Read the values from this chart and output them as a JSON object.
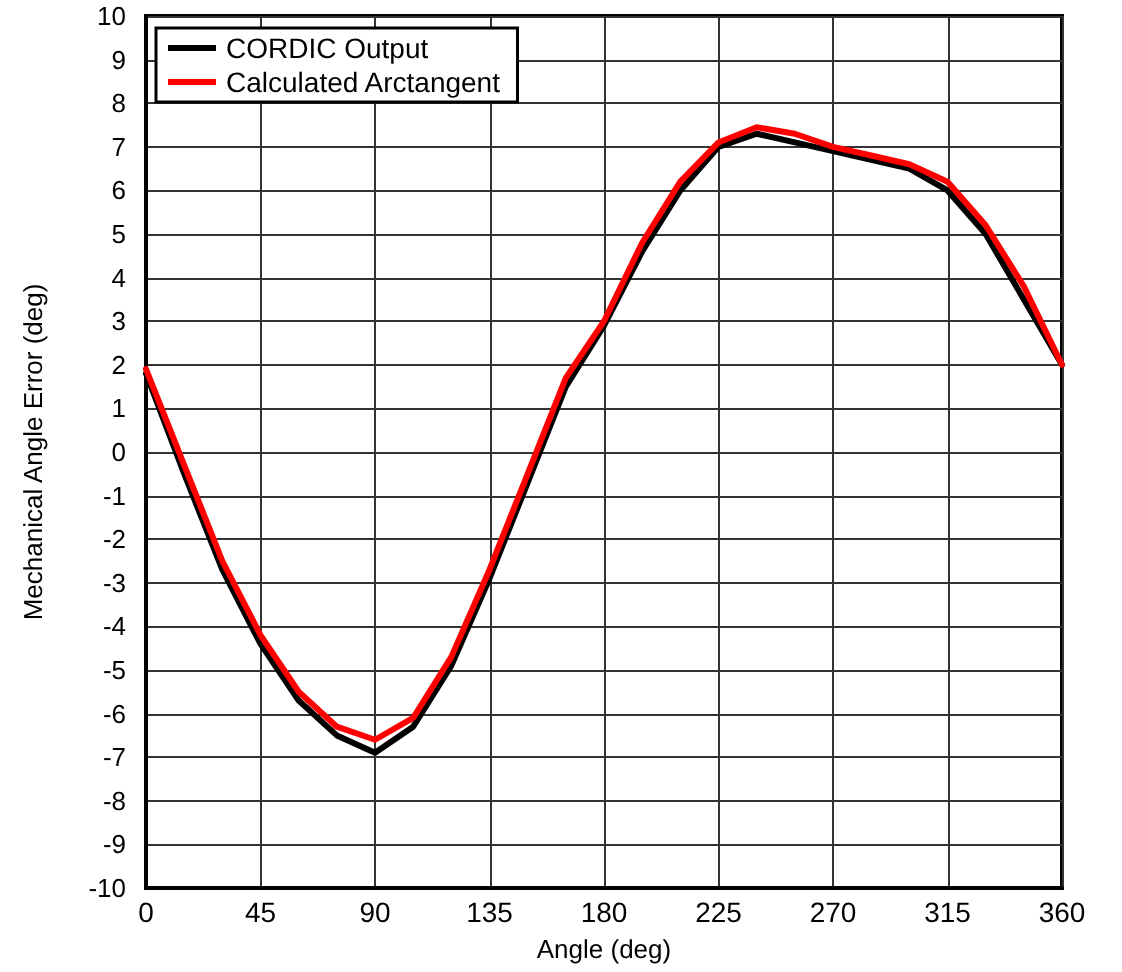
{
  "chart_data": {
    "type": "line",
    "xlabel": "Angle (deg)",
    "ylabel": "Mechanical Angle Error (deg)",
    "xlim": [
      0,
      360
    ],
    "xticks": [
      0,
      45,
      90,
      135,
      180,
      225,
      270,
      315,
      360
    ],
    "ylim": [
      -10,
      10
    ],
    "yticks": [
      -10,
      -9,
      -8,
      -7,
      -6,
      -5,
      -4,
      -3,
      -2,
      -1,
      0,
      1,
      2,
      3,
      4,
      5,
      6,
      7,
      8,
      9,
      10
    ],
    "grid": true,
    "legend": "top left",
    "x": [
      0,
      15,
      30,
      45,
      60,
      75,
      90,
      105,
      120,
      135,
      150,
      165,
      180,
      195,
      210,
      225,
      240,
      255,
      270,
      285,
      300,
      315,
      330,
      345,
      360
    ],
    "series": [
      {
        "name": "CORDIC Output",
        "color": "#000000",
        "values": [
          1.8,
          -0.5,
          -2.7,
          -4.4,
          -5.7,
          -6.5,
          -6.9,
          -6.3,
          -4.9,
          -2.9,
          -0.7,
          1.5,
          2.9,
          4.6,
          6.0,
          7.0,
          7.3,
          7.1,
          6.9,
          6.7,
          6.5,
          6.0,
          5.0,
          3.5,
          2.0
        ]
      },
      {
        "name": "Calculated Arctangent",
        "color": "#ff0000",
        "values": [
          1.9,
          -0.3,
          -2.5,
          -4.2,
          -5.5,
          -6.3,
          -6.6,
          -6.1,
          -4.7,
          -2.7,
          -0.5,
          1.7,
          3.0,
          4.8,
          6.2,
          7.1,
          7.45,
          7.3,
          7.0,
          6.8,
          6.6,
          6.2,
          5.2,
          3.8,
          2.0
        ]
      }
    ]
  }
}
